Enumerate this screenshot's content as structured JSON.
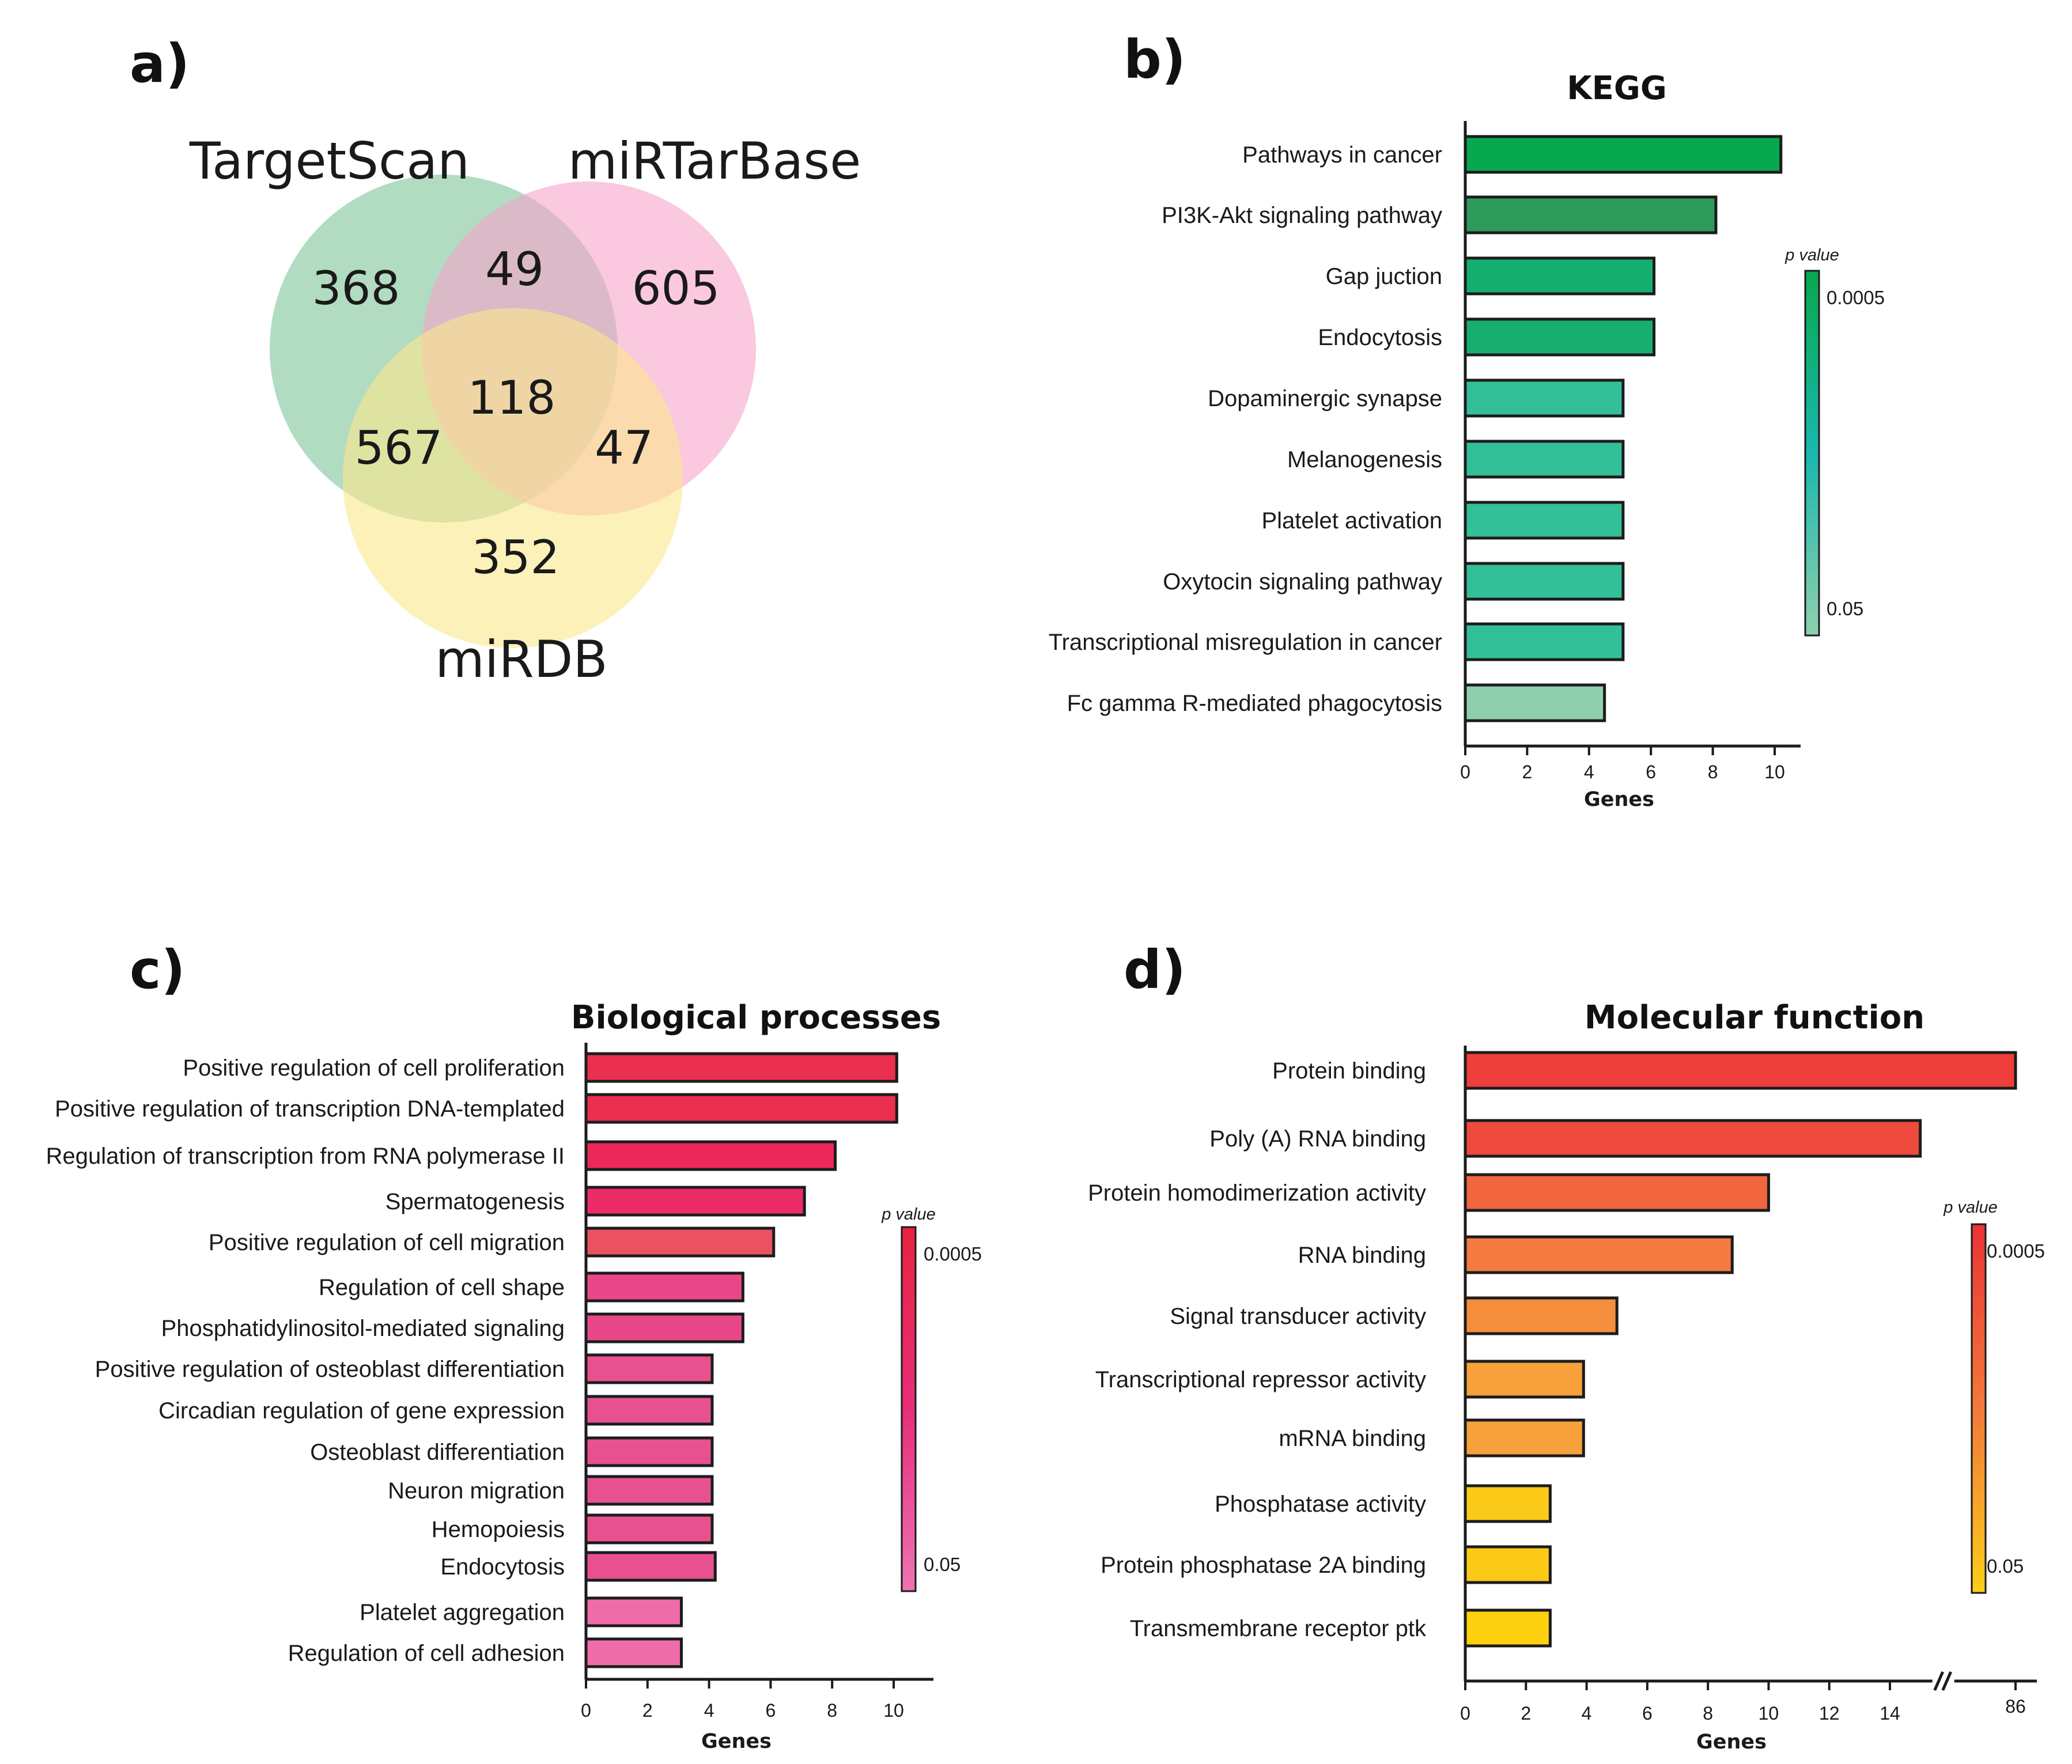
{
  "panels": {
    "a": "a)",
    "b": "b)",
    "c": "c)",
    "d": "d)"
  },
  "venn": {
    "sets": [
      "TargetScan",
      "miRTarBase",
      "miRDB"
    ],
    "regions": {
      "targetscan_only": 368,
      "mirtarbase_only": 605,
      "mirdb_only": 352,
      "targetscan_mirtarbase": 49,
      "targetscan_mirdb": 567,
      "mirtarbase_mirdb": 47,
      "all_three": 118
    },
    "colors": {
      "targetscan": "#7dc59a",
      "mirtarbase": "#f7a3c9",
      "mirdb": "#fbe78c"
    }
  },
  "chart_data": [
    {
      "id": "kegg",
      "type": "bar",
      "orientation": "horizontal",
      "title": "KEGG",
      "xlabel": "Genes",
      "xlim": [
        0,
        11
      ],
      "xticks": [
        0,
        2,
        4,
        6,
        8,
        10
      ],
      "categories": [
        "Pathways in cancer",
        "PI3K-Akt signaling pathway",
        "Gap juction",
        "Endocytosis",
        "Dopaminergic synapse",
        "Melanogenesis",
        "Platelet activation",
        "Oxytocin signaling pathway",
        "Transcriptional misregulation in cancer",
        "Fc gamma R-mediated phagocytosis"
      ],
      "values": [
        10.2,
        8.1,
        6.1,
        6.1,
        5.1,
        5.1,
        5.1,
        5.1,
        5.1,
        4.5
      ],
      "bar_colors": [
        "#08a84e",
        "#2e9a5c",
        "#14ae6f",
        "#18ae6f",
        "#33bf98",
        "#33bf98",
        "#33bf98",
        "#33bf98",
        "#33bf98",
        "#8ed0ad"
      ],
      "legend": {
        "title": "p value",
        "high_label": "0.0005",
        "low_label": "0.05",
        "color_high": "#08a84e",
        "color_mid": "#1bb7ae",
        "color_low": "#8ed0ad"
      }
    },
    {
      "id": "bp",
      "type": "bar",
      "orientation": "horizontal",
      "title": "Biological processes",
      "xlabel": "Genes",
      "xlim": [
        0,
        11.3
      ],
      "xticks": [
        0,
        2,
        4,
        6,
        8,
        10
      ],
      "categories": [
        "Positive regulation of cell proliferation",
        "Positive regulation of transcription DNA-templated",
        "Regulation of transcription from RNA polymerase II",
        "Spermatogenesis",
        "Positive regulation of cell migration",
        "Regulation of cell shape",
        "Phosphatidylinositol-mediated signaling",
        "Positive regulation of osteoblast differentiation",
        "Circadian regulation of gene expression",
        "Osteoblast differentiation",
        "Neuron migration",
        "Hemopoiesis",
        "Endocytosis",
        "Platelet aggregation",
        "Regulation of cell adhesion"
      ],
      "values": [
        10.1,
        10.1,
        8.1,
        7.1,
        6.1,
        5.1,
        5.1,
        4.1,
        4.1,
        4.1,
        4.1,
        4.1,
        4.2,
        3.1,
        3.1
      ],
      "bar_colors": [
        "#ea2f4f",
        "#ea2f4f",
        "#ec2858",
        "#ec2c66",
        "#ea5262",
        "#e8488a",
        "#e8488a",
        "#e8518f",
        "#e8518f",
        "#e8518f",
        "#e8518f",
        "#e8518f",
        "#e8518f",
        "#ee6da8",
        "#ee6da8"
      ],
      "legend": {
        "title": "p value",
        "high_label": "0.0005",
        "low_label": "0.05",
        "color_high": "#e8233f",
        "color_mid": "#e82e79",
        "color_low": "#ee73b5"
      }
    },
    {
      "id": "mf",
      "type": "bar",
      "orientation": "horizontal",
      "title": "Molecular function",
      "xlabel": "Genes",
      "xlim": [
        0,
        18.7
      ],
      "xticks": [
        0,
        2,
        4,
        6,
        8,
        10,
        12,
        14
      ],
      "axis_break": {
        "after": 15,
        "label": "86",
        "note": "x-axis is broken; Protein binding reaches 86"
      },
      "categories": [
        "Protein binding",
        "Poly (A) RNA binding",
        "Protein homodimerization activity",
        "RNA binding",
        "Signal transducer activity",
        "Transcriptional repressor activity",
        "mRNA binding",
        "Phosphatase activity",
        "Protein phosphatase 2A binding",
        "Transmembrane receptor ptk"
      ],
      "values": [
        86,
        15,
        10,
        8.8,
        5,
        3.9,
        3.9,
        2.8,
        2.8,
        2.8
      ],
      "bar_colors": [
        "#ee3e3b",
        "#ee4a3d",
        "#f2663f",
        "#f37b40",
        "#f48e3d",
        "#f6a13b",
        "#f6a13b",
        "#fbc918",
        "#fbc918",
        "#fcd00e"
      ],
      "legend": {
        "title": "p value",
        "high_label": "0.0005",
        "low_label": "0.05",
        "color_high": "#ea3436",
        "color_mid": "#f3793a",
        "color_low": "#fbcf19"
      }
    }
  ]
}
